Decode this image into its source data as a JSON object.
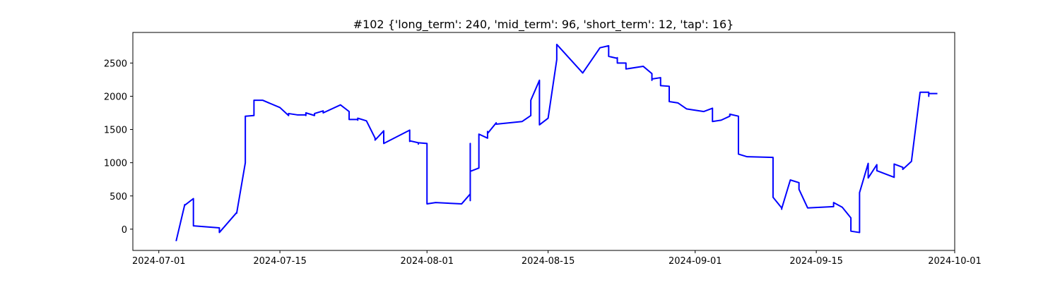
{
  "chart_data": {
    "type": "line",
    "title": "#102 {'long_term': 240, 'mid_term': 96, 'short_term': 12, 'tap': 16}",
    "x": [
      "2024-07-03",
      "2024-07-04",
      "2024-07-04",
      "2024-07-05",
      "2024-07-05",
      "2024-07-05",
      "2024-07-08",
      "2024-07-08",
      "2024-07-10",
      "2024-07-10",
      "2024-07-11",
      "2024-07-11",
      "2024-07-12",
      "2024-07-12",
      "2024-07-12",
      "2024-07-13",
      "2024-07-15",
      "2024-07-16",
      "2024-07-16",
      "2024-07-17",
      "2024-07-18",
      "2024-07-18",
      "2024-07-18",
      "2024-07-19",
      "2024-07-19",
      "2024-07-19",
      "2024-07-20",
      "2024-07-20",
      "2024-07-22",
      "2024-07-23",
      "2024-07-23",
      "2024-07-24",
      "2024-07-24",
      "2024-07-24",
      "2024-07-25",
      "2024-07-26",
      "2024-07-26",
      "2024-07-27",
      "2024-07-27",
      "2024-07-30",
      "2024-07-30",
      "2024-07-30",
      "2024-07-30",
      "2024-07-31",
      "2024-07-31",
      "2024-07-31",
      "2024-08-01",
      "2024-08-01",
      "2024-08-01",
      "2024-08-01",
      "2024-08-02",
      "2024-08-05",
      "2024-08-06",
      "2024-08-06",
      "2024-08-06",
      "2024-08-06",
      "2024-08-07",
      "2024-08-07",
      "2024-08-07",
      "2024-08-08",
      "2024-08-08",
      "2024-08-08",
      "2024-08-09",
      "2024-08-09",
      "2024-08-12",
      "2024-08-13",
      "2024-08-13",
      "2024-08-13",
      "2024-08-14",
      "2024-08-14",
      "2024-08-14",
      "2024-08-15",
      "2024-08-16",
      "2024-08-16",
      "2024-08-16",
      "2024-08-16",
      "2024-08-19",
      "2024-08-21",
      "2024-08-22",
      "2024-08-22",
      "2024-08-22",
      "2024-08-23",
      "2024-08-23",
      "2024-08-23",
      "2024-08-24",
      "2024-08-24",
      "2024-08-26",
      "2024-08-27",
      "2024-08-27",
      "2024-08-27",
      "2024-08-28",
      "2024-08-28",
      "2024-08-28",
      "2024-08-29",
      "2024-08-29",
      "2024-08-30",
      "2024-08-31",
      "2024-09-02",
      "2024-09-03",
      "2024-09-03",
      "2024-09-03",
      "2024-09-03",
      "2024-09-04",
      "2024-09-05",
      "2024-09-05",
      "2024-09-06",
      "2024-09-06",
      "2024-09-06",
      "2024-09-07",
      "2024-09-10",
      "2024-09-10",
      "2024-09-10",
      "2024-09-10",
      "2024-09-11",
      "2024-09-11",
      "2024-09-11",
      "2024-09-12",
      "2024-09-13",
      "2024-09-13",
      "2024-09-13",
      "2024-09-14",
      "2024-09-17",
      "2024-09-17",
      "2024-09-18",
      "2024-09-19",
      "2024-09-19",
      "2024-09-20",
      "2024-09-20",
      "2024-09-20",
      "2024-09-21",
      "2024-09-21",
      "2024-09-22",
      "2024-09-22",
      "2024-09-24",
      "2024-09-24",
      "2024-09-24",
      "2024-09-24",
      "2024-09-25",
      "2024-09-25",
      "2024-09-26",
      "2024-09-27",
      "2024-09-28",
      "2024-09-28",
      "2024-09-28",
      "2024-09-29"
    ],
    "values": [
      -180,
      370,
      360,
      460,
      250,
      50,
      20,
      -50,
      250,
      240,
      1000,
      1700,
      1710,
      1830,
      1940,
      1940,
      1830,
      1710,
      1740,
      1720,
      1720,
      1710,
      1750,
      1710,
      1740,
      1740,
      1780,
      1750,
      1870,
      1770,
      1650,
      1650,
      1640,
      1670,
      1630,
      1370,
      1340,
      1480,
      1290,
      1490,
      1480,
      1320,
      1330,
      1300,
      1280,
      1300,
      1290,
      640,
      640,
      380,
      400,
      380,
      530,
      430,
      1290,
      870,
      920,
      920,
      1430,
      1370,
      1470,
      1440,
      1600,
      1580,
      1620,
      1710,
      1810,
      1940,
      2240,
      1760,
      1570,
      1670,
      2550,
      2620,
      2750,
      2780,
      2350,
      2730,
      2760,
      2740,
      2600,
      2570,
      2580,
      2500,
      2500,
      2410,
      2450,
      2340,
      2240,
      2260,
      2280,
      2180,
      2160,
      2150,
      1920,
      1900,
      1810,
      1770,
      1820,
      1780,
      1630,
      1620,
      1640,
      1700,
      1730,
      1700,
      1360,
      1130,
      1090,
      1080,
      880,
      680,
      480,
      320,
      300,
      310,
      740,
      700,
      620,
      600,
      320,
      340,
      400,
      330,
      170,
      -30,
      -50,
      -40,
      550,
      990,
      770,
      970,
      880,
      780,
      980,
      960,
      980,
      930,
      900,
      1020,
      2060,
      2060,
      2000,
      2040,
      2040
    ],
    "color": "#0000ff",
    "xlim": [
      "2024-06-28",
      "2024-10-01"
    ],
    "xticks": [
      "2024-07-01",
      "2024-07-15",
      "2024-08-01",
      "2024-08-15",
      "2024-09-01",
      "2024-09-15",
      "2024-10-01"
    ],
    "ylim": [
      -320,
      2960
    ],
    "yticks": [
      0,
      500,
      1000,
      1500,
      2000,
      2500
    ]
  }
}
